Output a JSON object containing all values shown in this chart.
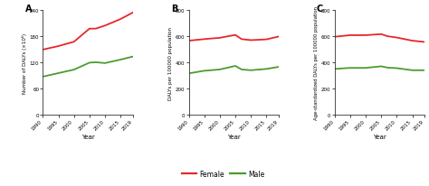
{
  "years": [
    1990,
    1995,
    2000,
    2005,
    2007,
    2010,
    2015,
    2019
  ],
  "panel_A_female": [
    150,
    158,
    168,
    198,
    198,
    205,
    220,
    235
  ],
  "panel_A_male": [
    88,
    96,
    104,
    120,
    121,
    119,
    127,
    134
  ],
  "panel_B_female": [
    568,
    580,
    590,
    612,
    580,
    572,
    578,
    600
  ],
  "panel_B_male": [
    318,
    338,
    348,
    375,
    348,
    342,
    352,
    368
  ],
  "panel_C_female": [
    598,
    610,
    610,
    618,
    602,
    592,
    568,
    558
  ],
  "panel_C_male": [
    352,
    360,
    360,
    372,
    362,
    358,
    342,
    342
  ],
  "female_color": "#e8262a",
  "male_color": "#4a9c2e",
  "panel_A_ylabel": "Number of DALYs (×10⁶)",
  "panel_B_ylabel": "DALYs per 100000 population",
  "panel_C_ylabel": "Age-standardized DALYs per 100000 population",
  "xlabel": "Year",
  "panel_A_ylim": [
    0,
    240
  ],
  "panel_B_ylim": [
    0,
    800
  ],
  "panel_C_ylim": [
    0,
    800
  ],
  "panel_A_yticks": [
    0,
    60,
    120,
    180,
    240
  ],
  "panel_B_yticks": [
    0,
    200,
    400,
    600,
    800
  ],
  "panel_C_yticks": [
    0,
    200,
    400,
    600,
    800
  ],
  "xticks": [
    1990,
    1995,
    2000,
    2005,
    2010,
    2015,
    2019
  ],
  "xtick_labels": [
    "1990",
    "1995",
    "2000",
    "2005",
    "2010",
    "2015",
    "2019"
  ],
  "labels": [
    "Female",
    "Male"
  ],
  "bg_color": "#ffffff",
  "line_width": 1.3
}
